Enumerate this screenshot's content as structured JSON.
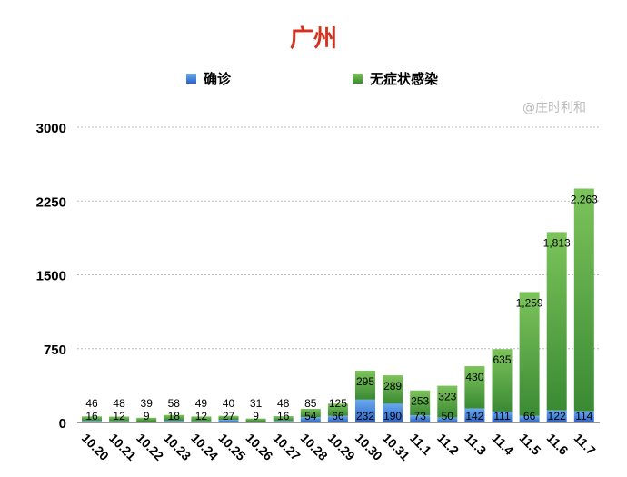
{
  "chart_data": {
    "type": "bar",
    "stacked": true,
    "title": "广州",
    "categories": [
      "10.20",
      "10.21",
      "10.22",
      "10.23",
      "10.24",
      "10.25",
      "10.26",
      "10.27",
      "10.28",
      "10.29",
      "10.30",
      "10.31",
      "11.1",
      "11.2",
      "11.3",
      "11.4",
      "11.5",
      "11.6",
      "11.7"
    ],
    "series": [
      {
        "name": "确诊",
        "color": "#3a78d8",
        "values": [
          16,
          12,
          9,
          18,
          12,
          27,
          9,
          16,
          54,
          66,
          232,
          190,
          73,
          50,
          142,
          111,
          66,
          122,
          114
        ]
      },
      {
        "name": "无症状感染",
        "color": "#4c9a3c",
        "values": [
          46,
          48,
          39,
          58,
          49,
          40,
          31,
          48,
          85,
          125,
          295,
          289,
          253,
          323,
          430,
          635,
          1259,
          1813,
          2263
        ]
      }
    ],
    "yticks": [
      "0",
      "750",
      "1500",
      "2250",
      "3000"
    ],
    "ylim": [
      0,
      3000
    ],
    "grid": true,
    "legend": "top"
  },
  "watermark": "@庄时利和"
}
